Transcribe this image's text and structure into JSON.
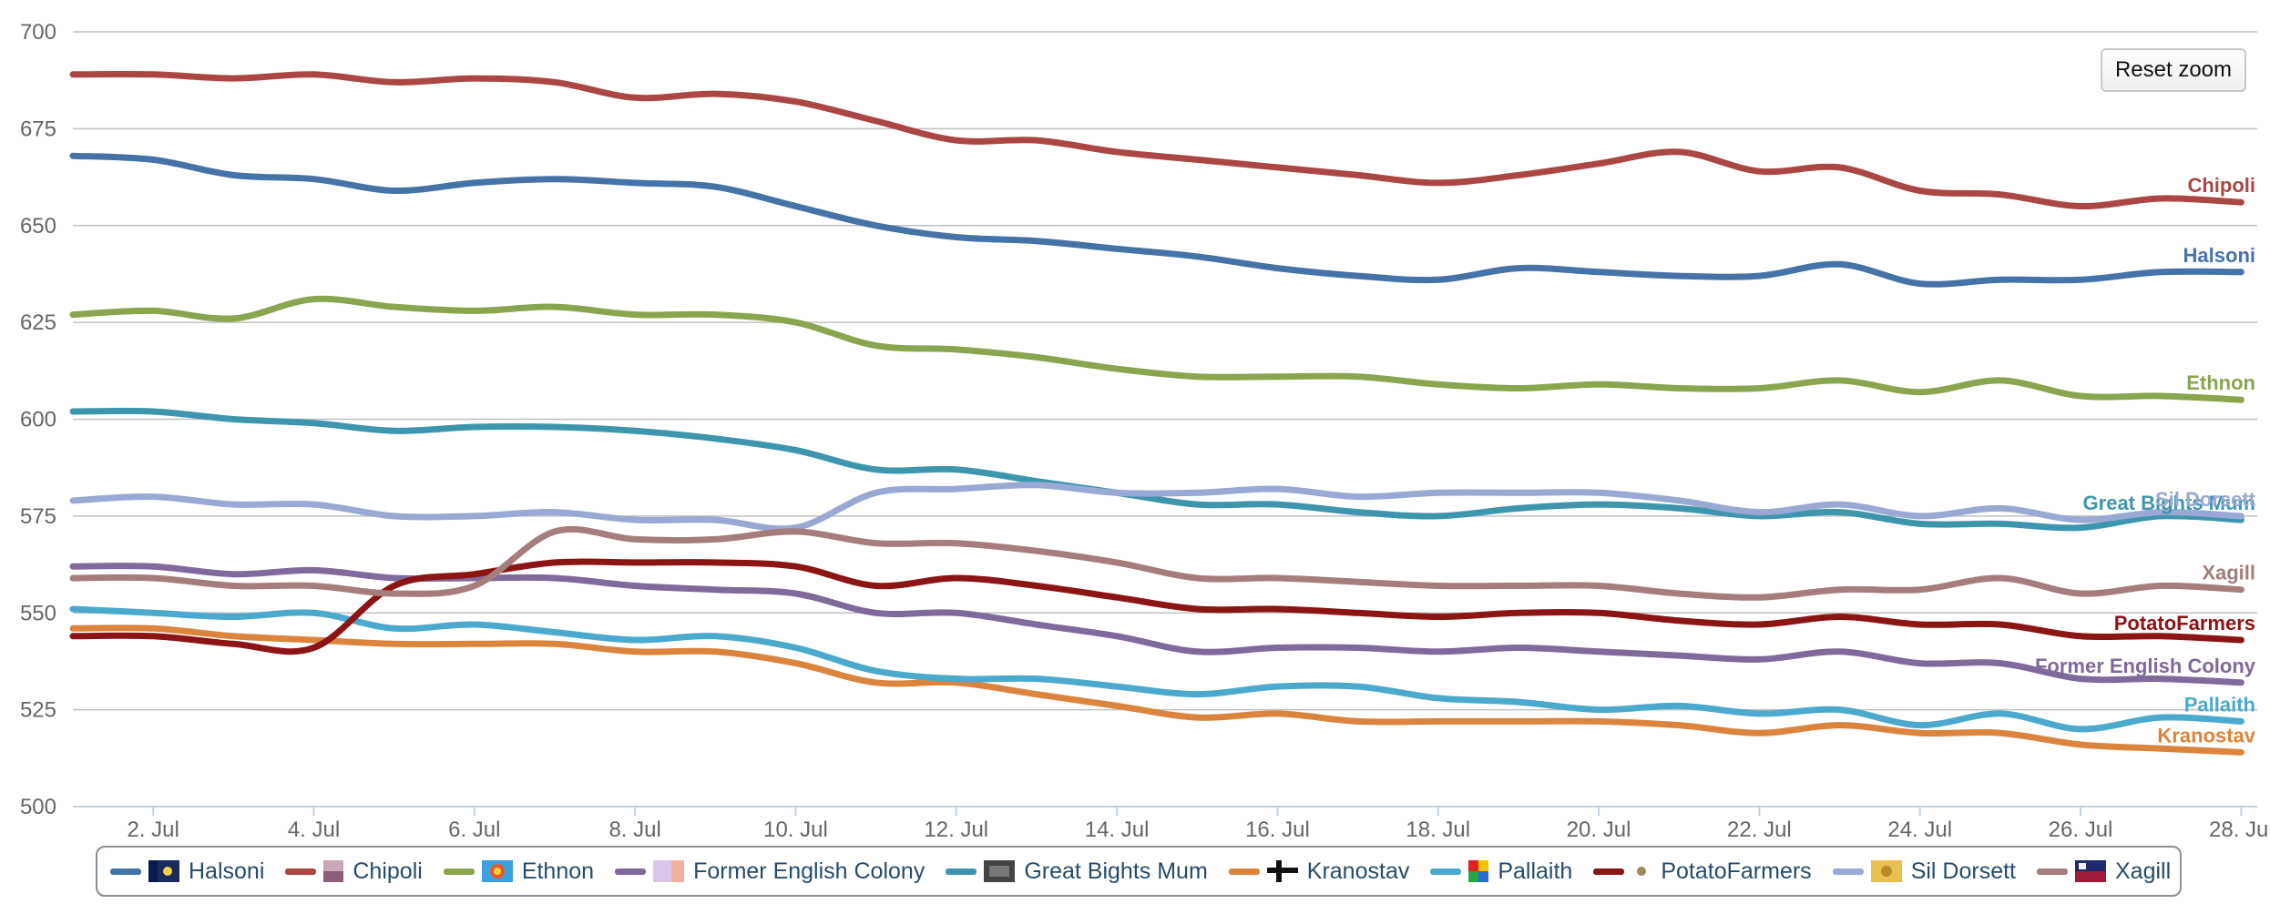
{
  "reset_zoom_label": "Reset zoom",
  "chart_data": {
    "type": "line",
    "title": "",
    "xlabel": "",
    "ylabel": "",
    "x_ticks": [
      "2. Jul",
      "4. Jul",
      "6. Jul",
      "8. Jul",
      "10. Jul",
      "12. Jul",
      "14. Jul",
      "16. Jul",
      "18. Jul",
      "20. Jul",
      "22. Jul",
      "24. Jul",
      "26. Jul",
      "28. Jul"
    ],
    "x": [
      1,
      2,
      3,
      4,
      5,
      6,
      7,
      8,
      9,
      10,
      11,
      12,
      13,
      14,
      15,
      16,
      17,
      18,
      19,
      20,
      21,
      22,
      23,
      24,
      25,
      26,
      27,
      28
    ],
    "x_unit": "July (day of month)",
    "xlim": [
      1,
      28.2
    ],
    "y_ticks": [
      500,
      525,
      550,
      575,
      600,
      625,
      650,
      675,
      700
    ],
    "ylim": [
      500,
      700
    ],
    "grid": true,
    "legend_position": "bottom",
    "series": [
      {
        "name": "Halsoni",
        "color": "#4572a7",
        "values": [
          668,
          667,
          663,
          662,
          659,
          661,
          662,
          661,
          660,
          655,
          650,
          647,
          646,
          644,
          642,
          639,
          637,
          636,
          639,
          638,
          637,
          637,
          640,
          635,
          636,
          636,
          638,
          638
        ]
      },
      {
        "name": "Chipoli",
        "color": "#aa4643",
        "values": [
          689,
          689,
          688,
          689,
          687,
          688,
          687,
          683,
          684,
          682,
          677,
          672,
          672,
          669,
          667,
          665,
          663,
          661,
          663,
          666,
          669,
          664,
          665,
          659,
          658,
          655,
          657,
          656
        ]
      },
      {
        "name": "Ethnon",
        "color": "#89a54e",
        "values": [
          627,
          628,
          626,
          631,
          629,
          628,
          629,
          627,
          627,
          625,
          619,
          618,
          616,
          613,
          611,
          611,
          611,
          609,
          608,
          609,
          608,
          608,
          610,
          607,
          610,
          606,
          606,
          605
        ]
      },
      {
        "name": "Former English Colony",
        "color": "#80699b",
        "values": [
          562,
          562,
          560,
          561,
          559,
          559,
          559,
          557,
          556,
          555,
          550,
          550,
          547,
          544,
          540,
          541,
          541,
          540,
          541,
          540,
          539,
          538,
          540,
          537,
          537,
          533,
          533,
          532
        ]
      },
      {
        "name": "Great Bights Mum",
        "color": "#3d96ae",
        "values": [
          602,
          602,
          600,
          599,
          597,
          598,
          598,
          597,
          595,
          592,
          587,
          587,
          584,
          581,
          578,
          578,
          576,
          575,
          577,
          578,
          577,
          575,
          576,
          573,
          573,
          572,
          575,
          574
        ]
      },
      {
        "name": "Kranostav",
        "color": "#db843d",
        "values": [
          546,
          546,
          544,
          543,
          542,
          542,
          542,
          540,
          540,
          537,
          532,
          532,
          529,
          526,
          523,
          524,
          522,
          522,
          522,
          522,
          521,
          519,
          521,
          519,
          519,
          516,
          515,
          514
        ]
      },
      {
        "name": "Pallaith",
        "color": "#4aa9cc",
        "values": [
          551,
          550,
          549,
          550,
          546,
          547,
          545,
          543,
          544,
          541,
          535,
          533,
          533,
          531,
          529,
          531,
          531,
          528,
          527,
          525,
          526,
          524,
          525,
          521,
          524,
          520,
          523,
          522
        ]
      },
      {
        "name": "PotatoFarmers",
        "color": "#8b1414",
        "values": [
          544,
          544,
          542,
          541,
          557,
          560,
          563,
          563,
          563,
          562,
          557,
          559,
          557,
          554,
          551,
          551,
          550,
          549,
          550,
          550,
          548,
          547,
          549,
          547,
          547,
          544,
          544,
          543
        ]
      },
      {
        "name": "Sil Dorsett",
        "color": "#99a9d3",
        "values": [
          579,
          580,
          578,
          578,
          575,
          575,
          576,
          574,
          574,
          572,
          581,
          582,
          583,
          581,
          581,
          582,
          580,
          581,
          581,
          581,
          579,
          576,
          578,
          575,
          577,
          574,
          576,
          575
        ]
      },
      {
        "name": "Xagill",
        "color": "#a47d7c",
        "values": [
          559,
          559,
          557,
          557,
          555,
          557,
          571,
          569,
          569,
          571,
          568,
          568,
          566,
          563,
          559,
          559,
          558,
          557,
          557,
          557,
          555,
          554,
          556,
          556,
          559,
          555,
          557,
          556
        ]
      }
    ],
    "end_labels": [
      {
        "series": "Chipoli",
        "text": "Chipoli"
      },
      {
        "series": "Halsoni",
        "text": "Halsoni"
      },
      {
        "series": "Ethnon",
        "text": "Ethnon"
      },
      {
        "series": "Great Bights Mum",
        "text": "Great Bights Mum"
      },
      {
        "series": "Sil Dorsett",
        "text": "Sil Dorsett"
      },
      {
        "series": "Xagill",
        "text": "Xagill"
      },
      {
        "series": "PotatoFarmers",
        "text": "PotatoFarmers"
      },
      {
        "series": "Former English Colony",
        "text": "Former English Colony"
      },
      {
        "series": "Pallaith",
        "text": "Pallaith"
      },
      {
        "series": "Kranostav",
        "text": "Kranostav"
      }
    ]
  },
  "legend": [
    {
      "name": "Halsoni",
      "color": "#4572a7",
      "flag_icon": "flag-halsoni-icon"
    },
    {
      "name": "Chipoli",
      "color": "#aa4643",
      "flag_icon": "flag-chipoli-icon"
    },
    {
      "name": "Ethnon",
      "color": "#89a54e",
      "flag_icon": "flag-ethnon-icon"
    },
    {
      "name": "Former English Colony",
      "color": "#80699b",
      "flag_icon": "flag-former-english-colony-icon"
    },
    {
      "name": "Great Bights Mum",
      "color": "#3d96ae",
      "flag_icon": "flag-great-bights-mum-icon"
    },
    {
      "name": "Kranostav",
      "color": "#db843d",
      "flag_icon": "flag-kranostav-icon"
    },
    {
      "name": "Pallaith",
      "color": "#4aa9cc",
      "flag_icon": "flag-pallaith-icon"
    },
    {
      "name": "PotatoFarmers",
      "color": "#8b1414",
      "flag_icon": "flag-potatofarmers-icon"
    },
    {
      "name": "Sil Dorsett",
      "color": "#99a9d3",
      "flag_icon": "flag-sil-dorsett-icon"
    },
    {
      "name": "Xagill",
      "color": "#a47d7c",
      "flag_icon": "flag-xagill-icon"
    }
  ]
}
